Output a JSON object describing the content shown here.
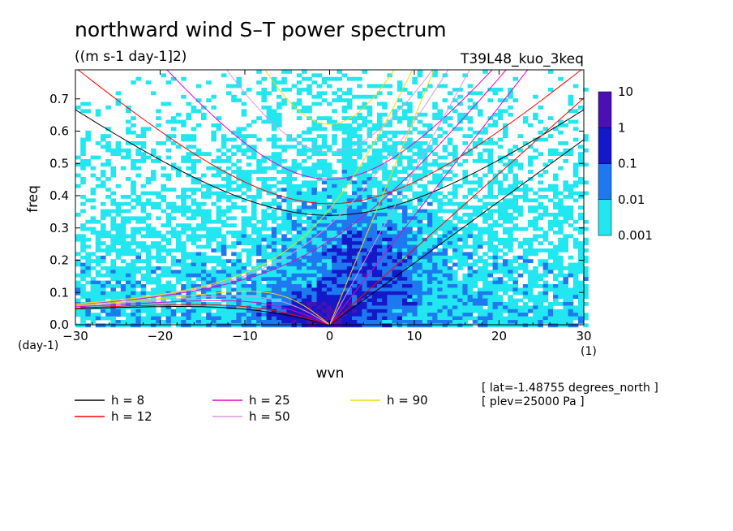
{
  "chart_data": {
    "type": "heatmap",
    "title": "northward wind S–T power spectrum",
    "units": "((m s-1 day-1]2)",
    "model_label": "T39L48_kuo_3keq",
    "xlabel": "wvn",
    "ylabel": "freq",
    "x_unit_label": "(1)",
    "y_unit_label": "(day-1)",
    "xlim": [
      -30,
      30
    ],
    "ylim": [
      0,
      0.79
    ],
    "xticks": [
      -30,
      -20,
      -10,
      0,
      10,
      20,
      30
    ],
    "xtick_labels": [
      "−30",
      "−20",
      "−10",
      "0",
      "10",
      "20",
      "30"
    ],
    "yticks": [
      0.0,
      0.1,
      0.2,
      0.3,
      0.4,
      0.5,
      0.6,
      0.7
    ],
    "ytick_labels": [
      "0.0",
      "0.1",
      "0.2",
      "0.3",
      "0.4",
      "0.5",
      "0.6",
      "0.7"
    ],
    "colorbar": {
      "levels": [
        0.001,
        0.01,
        0.1,
        1,
        10
      ],
      "labels": [
        "0.001",
        "0.01",
        "0.1",
        "1",
        "10"
      ],
      "colors": [
        "#22e6f0",
        "#1e78f0",
        "#1418c8",
        "#4a10b4"
      ]
    },
    "dispersion_legend": [
      {
        "label": "h =  8",
        "h": 8,
        "color": "#000000"
      },
      {
        "label": "h = 12",
        "h": 12,
        "color": "#ff0000"
      },
      {
        "label": "h = 25",
        "h": 25,
        "color": "#e600c8"
      },
      {
        "label": "h = 50",
        "h": 50,
        "color": "#dc96e6"
      },
      {
        "label": "h = 90",
        "h": 90,
        "color": "#f0dc00"
      }
    ],
    "annotations": [
      "[ lat=-1.48755 degrees_north ]",
      "[ plev=25000 Pa ]"
    ]
  }
}
